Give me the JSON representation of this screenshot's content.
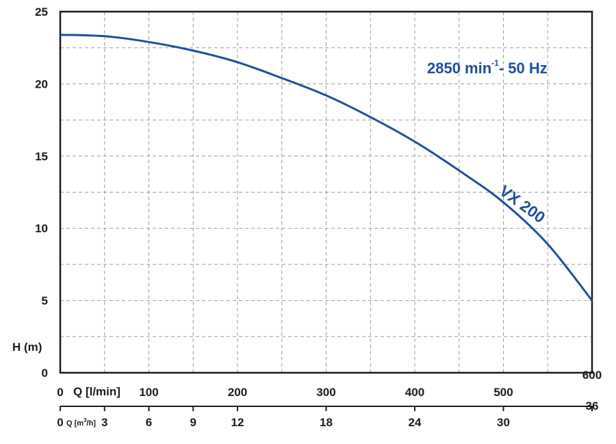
{
  "chart_data": {
    "type": "line",
    "title": "",
    "y_axis": {
      "label": "H (m)",
      "range": [
        0,
        25
      ],
      "ticks": [
        "0",
        "5",
        "10",
        "15",
        "20",
        "25"
      ]
    },
    "x_axis_primary": {
      "label": "Q [l/min]",
      "range": [
        0,
        600
      ],
      "ticks": [
        "0",
        "100",
        "200",
        "300",
        "400",
        "500",
        "600"
      ]
    },
    "x_axis_secondary": {
      "label_main": "Q [m",
      "label_sup": "3",
      "label_end": "/h]",
      "range": [
        0,
        36
      ],
      "ticks": [
        "0",
        "3",
        "6",
        "9",
        "12",
        "18",
        "24",
        "30",
        "36"
      ]
    },
    "grid": true,
    "annotation": {
      "speed_main": "2850 min",
      "speed_sup": "-1",
      "speed_end": "-  50 Hz"
    },
    "series": [
      {
        "name": "VX 200",
        "color": "#1d4f9a",
        "x": [
          0,
          50,
          100,
          150,
          200,
          250,
          300,
          350,
          400,
          450,
          500,
          550,
          600
        ],
        "y": [
          23.4,
          23.3,
          22.9,
          22.3,
          21.5,
          20.4,
          19.2,
          17.7,
          16.0,
          14.0,
          11.8,
          8.9,
          5.0
        ]
      }
    ]
  }
}
